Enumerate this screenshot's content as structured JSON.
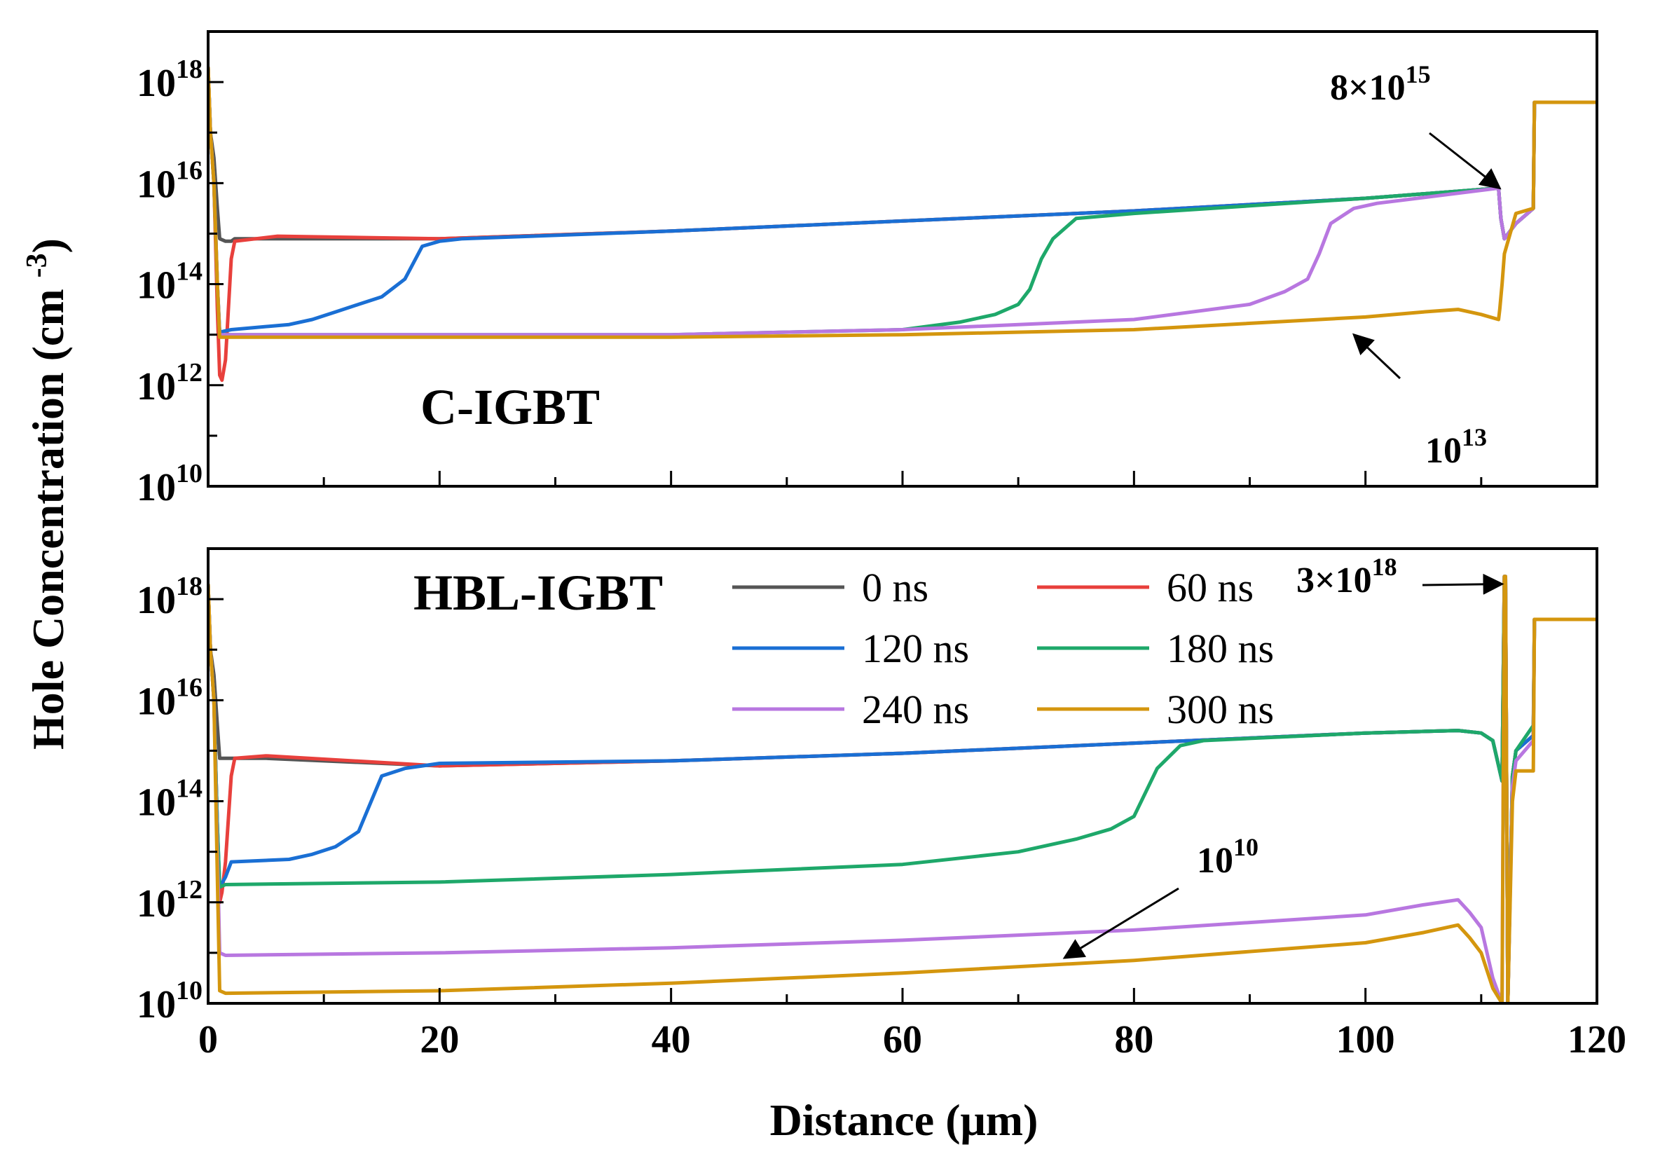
{
  "chart_data": [
    {
      "type": "line",
      "title": "C-IGBT",
      "xlabel": "Distance (μm)",
      "ylabel": "Hole Concentration (cm-3)",
      "yscale": "log",
      "xlim": [
        0,
        120
      ],
      "ylim_exp": [
        10,
        19
      ],
      "yticks": [
        {
          "base": "10",
          "exp": "18",
          "e": 18
        },
        {
          "base": "10",
          "exp": "16",
          "e": 16
        },
        {
          "base": "10",
          "exp": "14",
          "e": 14
        },
        {
          "base": "10",
          "exp": "12",
          "e": 12
        },
        {
          "base": "10",
          "exp": "10",
          "e": 10
        }
      ],
      "annotations": [
        {
          "text_base": "8×10",
          "text_exp": "15",
          "point": [
            111.6,
            15.9
          ]
        },
        {
          "text_base": "10",
          "text_exp": "13",
          "point": [
            99,
            13.0
          ]
        }
      ],
      "series": [
        {
          "name": "0 ns",
          "color": "#555555",
          "x": [
            0,
            0.2,
            0.5,
            0.8,
            1.0,
            1.5,
            2.0,
            2.3,
            5,
            20,
            40,
            60,
            80,
            100,
            111.5,
            111.7,
            112,
            113,
            114.5,
            114.6,
            120
          ],
          "log_y": [
            18.3,
            17.0,
            16.5,
            15.5,
            14.9,
            14.85,
            14.85,
            14.9,
            14.9,
            14.9,
            15.05,
            15.25,
            15.45,
            15.7,
            15.9,
            15.3,
            14.9,
            15.2,
            15.5,
            17.6,
            17.6
          ]
        },
        {
          "name": "60 ns",
          "color": "#e8403c",
          "x": [
            0,
            0.2,
            0.5,
            0.8,
            1.0,
            1.2,
            1.5,
            2.0,
            2.3,
            6,
            20,
            40,
            60,
            80,
            100,
            111.5,
            111.7,
            112,
            113,
            114.5,
            114.6,
            120
          ],
          "log_y": [
            18.3,
            17.0,
            16.0,
            13.5,
            12.2,
            12.1,
            12.5,
            14.5,
            14.85,
            14.95,
            14.9,
            15.05,
            15.25,
            15.45,
            15.7,
            15.9,
            15.3,
            14.9,
            15.2,
            15.5,
            17.6,
            17.6
          ]
        },
        {
          "name": "120 ns",
          "color": "#1a6fd4",
          "x": [
            0,
            0.2,
            0.5,
            0.8,
            1.0,
            2.0,
            7,
            9,
            11,
            13,
            15,
            17,
            18.5,
            20,
            22,
            40,
            60,
            80,
            100,
            111.5,
            111.7,
            112,
            113,
            114.5,
            114.6,
            120
          ],
          "log_y": [
            18.3,
            17.0,
            16.0,
            14.0,
            13.05,
            13.1,
            13.2,
            13.3,
            13.45,
            13.6,
            13.75,
            14.1,
            14.75,
            14.85,
            14.9,
            15.05,
            15.25,
            15.45,
            15.7,
            15.9,
            15.3,
            14.9,
            15.2,
            15.5,
            17.6,
            17.6
          ]
        },
        {
          "name": "180 ns",
          "color": "#1ea86a",
          "x": [
            0,
            0.2,
            0.5,
            0.8,
            1.0,
            5,
            20,
            40,
            60,
            65,
            68,
            70,
            71,
            72,
            73,
            75,
            80,
            100,
            111.5,
            111.7,
            112,
            113,
            114.5,
            114.6,
            120
          ],
          "log_y": [
            18.3,
            17.0,
            16.0,
            14.0,
            13.0,
            13.0,
            13.0,
            13.0,
            13.1,
            13.25,
            13.4,
            13.6,
            13.9,
            14.5,
            14.9,
            15.3,
            15.4,
            15.7,
            15.9,
            15.3,
            14.9,
            15.2,
            15.5,
            17.6,
            17.6
          ]
        },
        {
          "name": "240 ns",
          "color": "#b877e0",
          "x": [
            0,
            0.2,
            0.5,
            0.8,
            1.0,
            10,
            40,
            60,
            80,
            90,
            93,
            95,
            96,
            97,
            99,
            101,
            111.5,
            111.7,
            112,
            113,
            114.5,
            114.6,
            120
          ],
          "log_y": [
            18.3,
            17.0,
            16.0,
            14.0,
            13.0,
            13.0,
            13.0,
            13.1,
            13.3,
            13.6,
            13.85,
            14.1,
            14.6,
            15.2,
            15.5,
            15.6,
            15.9,
            15.3,
            14.9,
            15.2,
            15.5,
            17.6,
            17.6
          ]
        },
        {
          "name": "300 ns",
          "color": "#d4960e",
          "x": [
            0,
            0.2,
            0.5,
            0.8,
            1.0,
            10,
            40,
            60,
            80,
            100,
            105,
            108,
            110,
            111.5,
            111.6,
            111.8,
            112,
            113,
            114.5,
            114.6,
            120
          ],
          "log_y": [
            18.3,
            17.0,
            16.0,
            14.0,
            12.95,
            12.95,
            12.95,
            13.0,
            13.1,
            13.35,
            13.45,
            13.5,
            13.4,
            13.3,
            13.5,
            14.0,
            14.6,
            15.4,
            15.5,
            17.6,
            17.6
          ]
        }
      ]
    },
    {
      "type": "line",
      "title": "HBL-IGBT",
      "xlabel": "Distance (μm)",
      "ylabel": "Hole Concentration (cm-3)",
      "yscale": "log",
      "xlim": [
        0,
        120
      ],
      "ylim_exp": [
        10,
        19
      ],
      "yticks": [
        {
          "base": "10",
          "exp": "18",
          "e": 18
        },
        {
          "base": "10",
          "exp": "16",
          "e": 16
        },
        {
          "base": "10",
          "exp": "14",
          "e": 14
        },
        {
          "base": "10",
          "exp": "12",
          "e": 12
        },
        {
          "base": "10",
          "exp": "10",
          "e": 10
        }
      ],
      "xticks": [
        "0",
        "20",
        "40",
        "60",
        "80",
        "100",
        "120"
      ],
      "annotations": [
        {
          "text_base": "3×10",
          "text_exp": "18",
          "point": [
            111.8,
            18.3
          ]
        },
        {
          "text_base": "10",
          "text_exp": "10",
          "point": [
            74,
            10.9
          ]
        }
      ],
      "legend": {
        "position": "top-center",
        "columns": 2
      },
      "series": [
        {
          "name": "0 ns",
          "color": "#555555",
          "x": [
            0,
            0.2,
            0.5,
            0.8,
            1.0,
            1.5,
            2.0,
            2.3,
            5,
            20,
            40,
            60,
            80,
            100,
            108,
            110,
            111,
            111.8,
            112,
            112.1,
            112.3,
            112.7,
            113,
            114.5,
            114.6,
            120
          ],
          "log_y": [
            18.3,
            17.0,
            16.5,
            15.5,
            14.85,
            14.85,
            14.85,
            14.85,
            14.85,
            14.7,
            14.8,
            14.95,
            15.15,
            15.35,
            15.4,
            15.35,
            15.2,
            14.4,
            18.45,
            18.45,
            10.0,
            14.5,
            15.0,
            15.3,
            17.6,
            17.6
          ]
        },
        {
          "name": "60 ns",
          "color": "#e8403c",
          "x": [
            0,
            0.2,
            0.5,
            0.8,
            1.0,
            1.2,
            1.5,
            2.0,
            2.3,
            5,
            20,
            40,
            60,
            80,
            100,
            108,
            110,
            111,
            111.8,
            112,
            112.1,
            112.3,
            112.7,
            113,
            114.5,
            114.6,
            120
          ],
          "log_y": [
            18.3,
            17.0,
            16.0,
            13.5,
            12.0,
            12.2,
            12.8,
            14.5,
            14.85,
            14.9,
            14.7,
            14.8,
            14.95,
            15.15,
            15.35,
            15.4,
            15.35,
            15.2,
            14.4,
            18.45,
            18.45,
            10.0,
            14.5,
            15.0,
            15.3,
            17.6,
            17.6
          ]
        },
        {
          "name": "120 ns",
          "color": "#1a6fd4",
          "x": [
            0,
            0.2,
            0.5,
            0.8,
            1.0,
            1.5,
            2.0,
            7,
            9,
            11,
            13,
            15,
            17,
            18.5,
            20,
            40,
            60,
            80,
            100,
            108,
            110,
            111,
            111.8,
            112,
            112.1,
            112.3,
            112.7,
            113,
            114.5,
            114.6,
            120
          ],
          "log_y": [
            18.3,
            17.0,
            16.0,
            13.5,
            12.3,
            12.5,
            12.8,
            12.85,
            12.95,
            13.1,
            13.4,
            14.5,
            14.65,
            14.7,
            14.75,
            14.8,
            14.95,
            15.15,
            15.35,
            15.4,
            15.35,
            15.2,
            14.4,
            18.45,
            18.45,
            10.0,
            14.5,
            15.0,
            15.3,
            17.6,
            17.6
          ]
        },
        {
          "name": "180 ns",
          "color": "#1ea86a",
          "x": [
            0,
            0.2,
            0.5,
            0.8,
            1.0,
            1.5,
            20,
            40,
            60,
            70,
            75,
            78,
            80,
            82,
            84,
            86,
            100,
            108,
            110,
            111,
            111.8,
            112,
            112.1,
            112.3,
            112.7,
            113,
            114.5,
            114.6,
            120
          ],
          "log_y": [
            18.3,
            17.0,
            16.0,
            13.5,
            12.3,
            12.35,
            12.4,
            12.55,
            12.75,
            13.0,
            13.25,
            13.45,
            13.7,
            14.65,
            15.1,
            15.2,
            15.35,
            15.4,
            15.35,
            15.2,
            14.4,
            18.45,
            18.45,
            10.0,
            14.5,
            15.0,
            15.5,
            17.6,
            17.6
          ]
        },
        {
          "name": "240 ns",
          "color": "#b877e0",
          "x": [
            0,
            0.2,
            0.5,
            0.8,
            1.0,
            1.5,
            20,
            40,
            60,
            80,
            100,
            105,
            108,
            109,
            110,
            111,
            111.8,
            112,
            112.1,
            112.3,
            112.7,
            113,
            114.5,
            114.6,
            120
          ],
          "log_y": [
            18.3,
            17.0,
            16.0,
            13.0,
            11.0,
            10.95,
            11.0,
            11.1,
            11.25,
            11.45,
            11.75,
            11.95,
            12.05,
            11.8,
            11.5,
            10.5,
            10.0,
            18.45,
            18.45,
            10.0,
            14.3,
            14.8,
            15.2,
            17.6,
            17.6
          ]
        },
        {
          "name": "300 ns",
          "color": "#d4960e",
          "x": [
            0,
            0.2,
            0.5,
            0.8,
            1.0,
            1.5,
            20,
            40,
            60,
            80,
            100,
            105,
            108,
            109,
            110,
            111,
            111.8,
            112,
            112.1,
            112.3,
            112.7,
            113,
            114.5,
            114.6,
            120
          ],
          "log_y": [
            18.3,
            17.0,
            16.0,
            12.5,
            10.25,
            10.2,
            10.25,
            10.4,
            10.6,
            10.85,
            11.2,
            11.4,
            11.55,
            11.3,
            11.0,
            10.3,
            10.0,
            18.45,
            18.45,
            10.0,
            14.0,
            14.6,
            14.6,
            17.6,
            17.6
          ]
        }
      ]
    }
  ]
}
